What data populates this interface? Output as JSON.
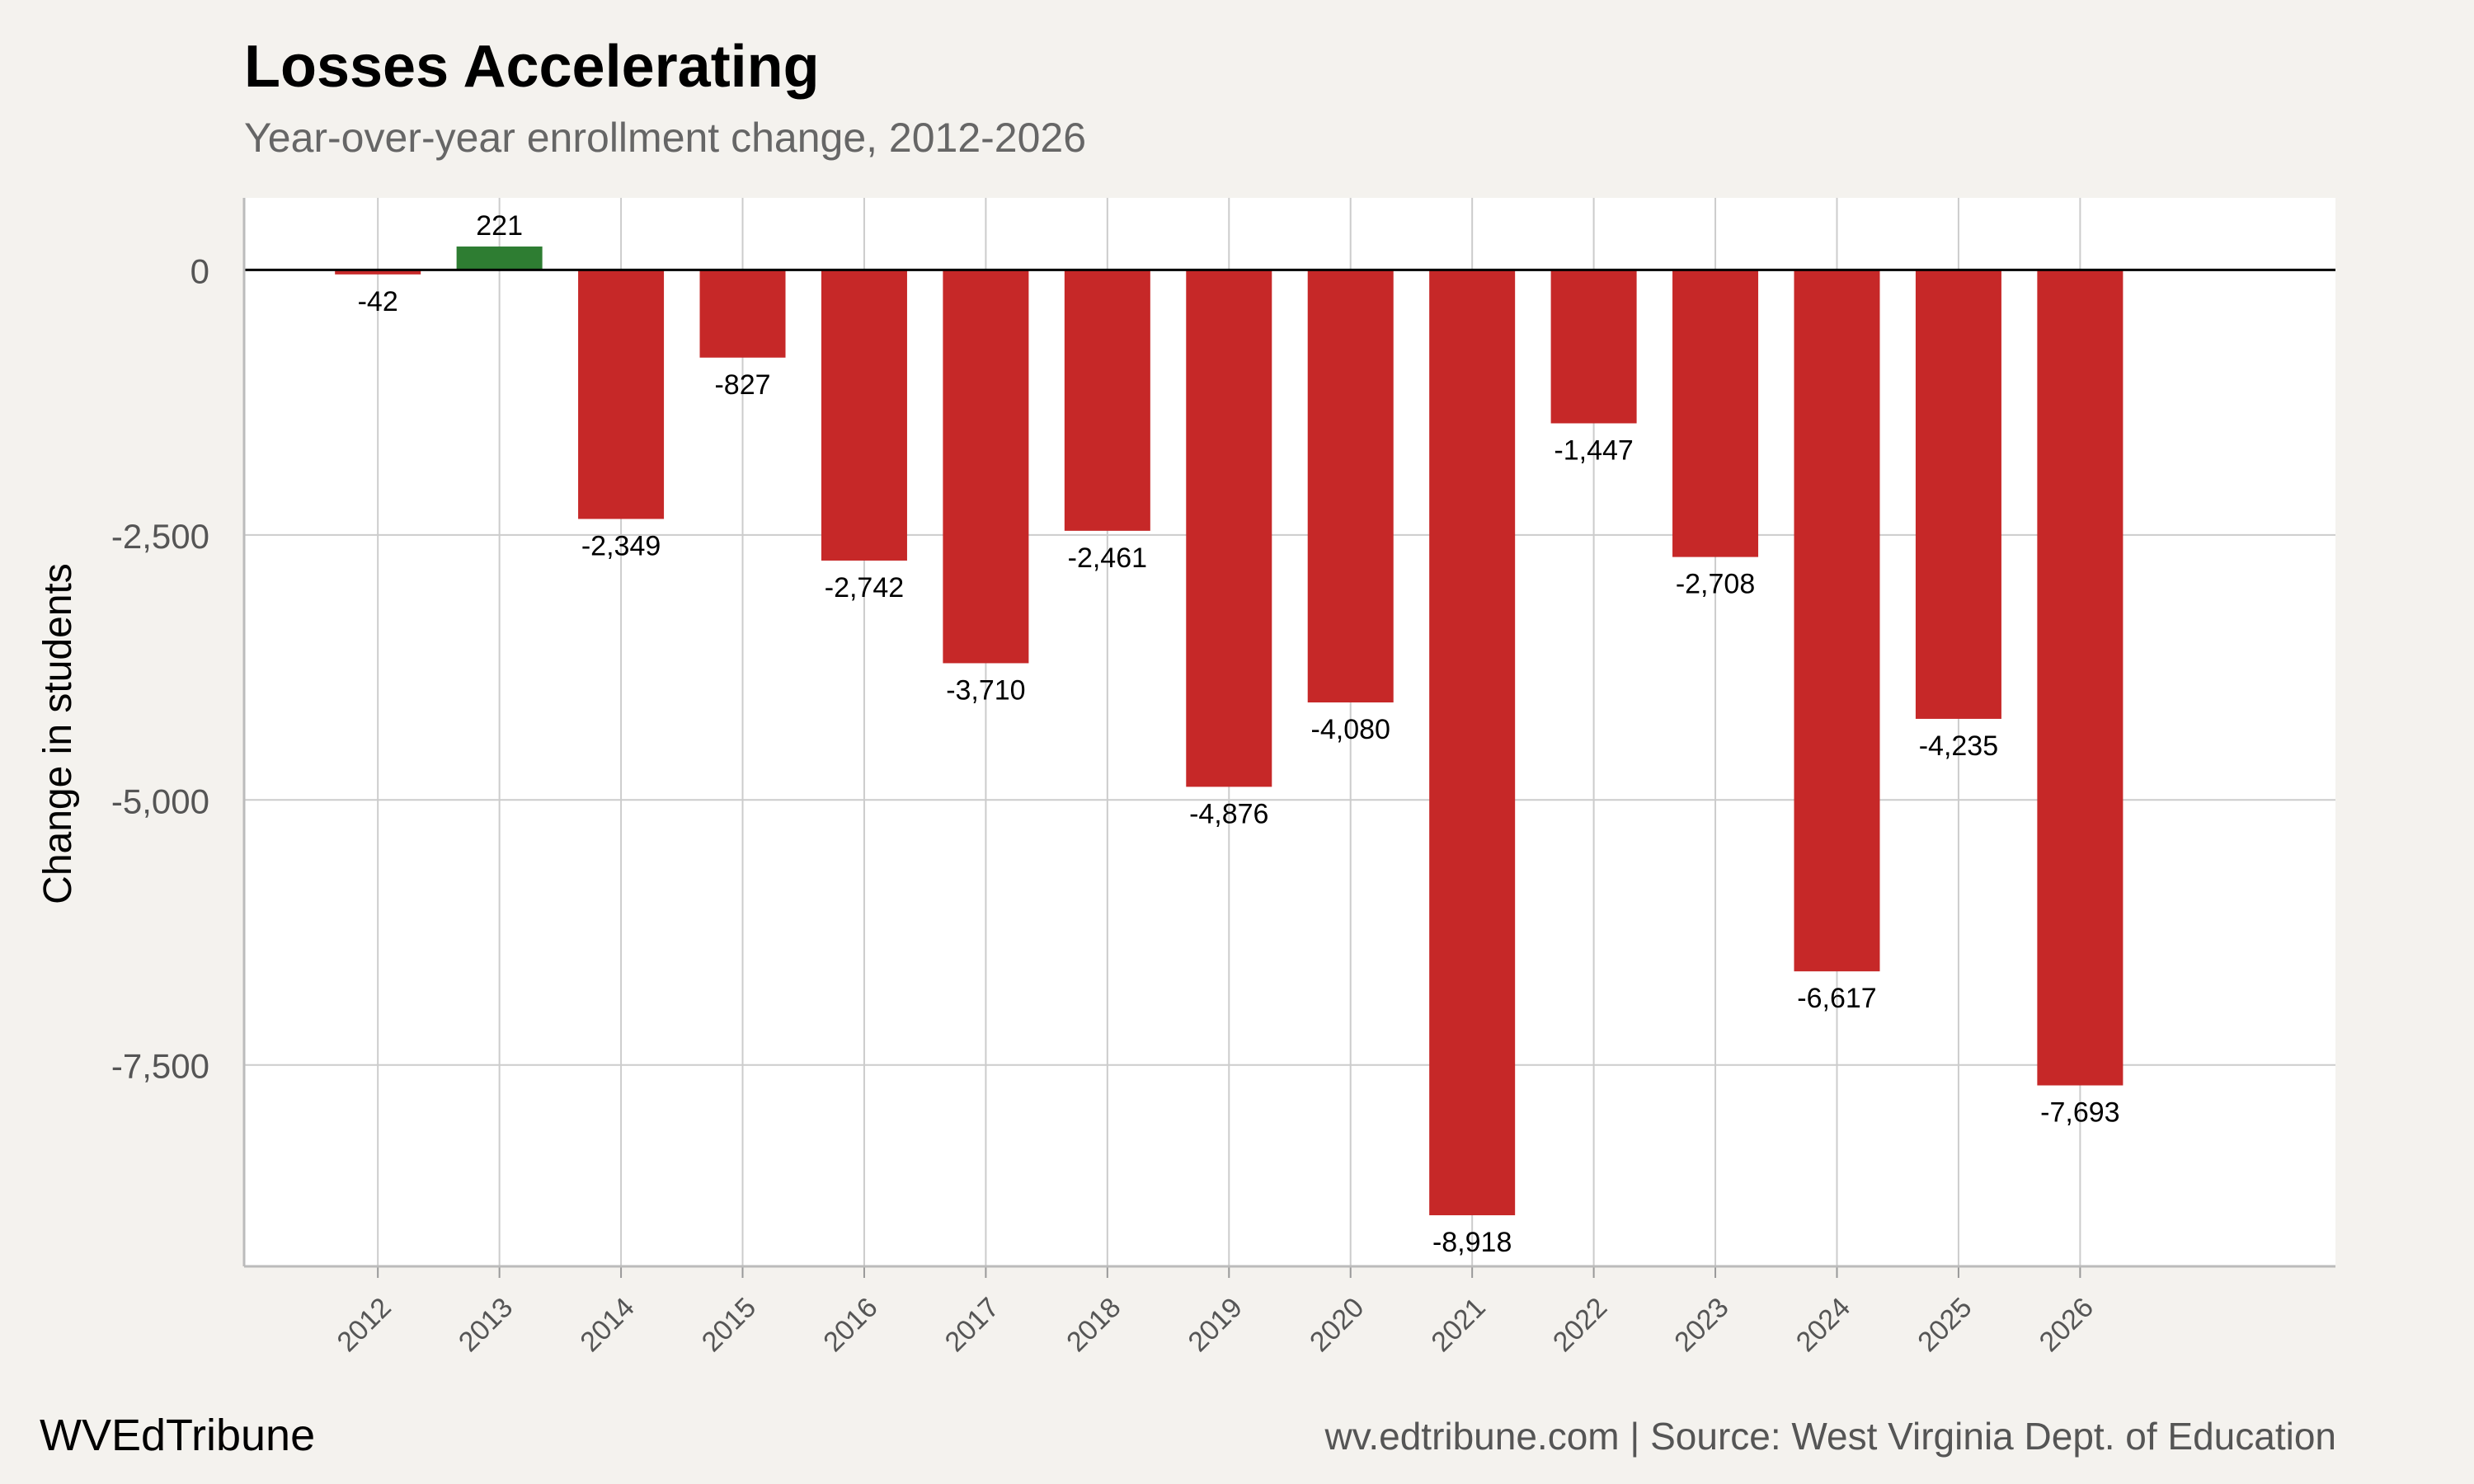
{
  "chart_data": {
    "type": "bar",
    "title": "Losses Accelerating",
    "subtitle": "Year-over-year enrollment change, 2012-2026",
    "xlabel": "",
    "ylabel": "Change in students",
    "categories": [
      "2012",
      "2013",
      "2014",
      "2015",
      "2016",
      "2017",
      "2018",
      "2019",
      "2020",
      "2021",
      "2022",
      "2023",
      "2024",
      "2025",
      "2026"
    ],
    "values": [
      -42,
      221,
      -2349,
      -827,
      -2742,
      -3710,
      -2461,
      -4876,
      -4080,
      -8918,
      -1447,
      -2708,
      -6617,
      -4235,
      -7693
    ],
    "data_labels": [
      "-42",
      "221",
      "-2,349",
      "-827",
      "-2,742",
      "-3,710",
      "-2,461",
      "-4,876",
      "-4,080",
      "-8,918",
      "-1,447",
      "-2,708",
      "-6,617",
      "-4,235",
      "-7,693"
    ],
    "y_ticks": [
      0,
      -2500,
      -5000,
      -7500
    ],
    "y_tick_labels": [
      "0",
      "-2,500",
      "-5,000",
      "-7,500"
    ],
    "ylim": [
      -9400,
      680
    ],
    "xlim": [
      2010.9,
      2028.1
    ],
    "grid": true,
    "colors": {
      "positive": "#2e7d32",
      "negative": "#c62828",
      "zero_line": "#000000",
      "grid": "#cccccc",
      "panel": "#ffffff"
    }
  },
  "footer": {
    "brand": "WVEdTribune",
    "source": "wv.edtribune.com | Source: West Virginia Dept. of Education"
  }
}
